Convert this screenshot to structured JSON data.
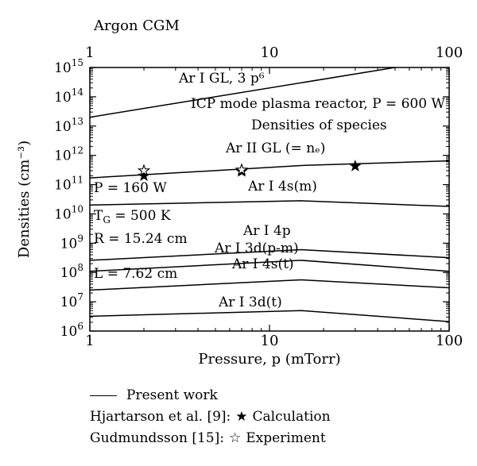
{
  "chart_data": {
    "type": "line",
    "title": "Argon CGM",
    "xlabel": "Pressure, p (mTorr)",
    "ylabel": "Densities (cm⁻³)",
    "x_scale": "log",
    "y_scale": "log",
    "xlim": [
      1,
      100
    ],
    "ylim": [
      1000000.0,
      1000000000000000.0
    ],
    "x_ticks": [
      {
        "value": 1,
        "label": "1"
      },
      {
        "value": 10,
        "label": "10"
      },
      {
        "value": 100,
        "label": "100"
      }
    ],
    "y_ticks": [
      {
        "exp": 6,
        "base": "10",
        "sup": "6"
      },
      {
        "exp": 7,
        "base": "10",
        "sup": "7"
      },
      {
        "exp": 8,
        "base": "10",
        "sup": "8"
      },
      {
        "exp": 9,
        "base": "10",
        "sup": "9"
      },
      {
        "exp": 10,
        "base": "10",
        "sup": "10"
      },
      {
        "exp": 11,
        "base": "10",
        "sup": "11"
      },
      {
        "exp": 12,
        "base": "10",
        "sup": "12"
      },
      {
        "exp": 13,
        "base": "10",
        "sup": "13"
      },
      {
        "exp": 14,
        "base": "10",
        "sup": "14"
      },
      {
        "exp": 15,
        "base": "10",
        "sup": "15"
      }
    ],
    "series": [
      {
        "label": "Ar I GL, 3 p⁶",
        "x": [
          1,
          50
        ],
        "y": [
          20000000000000.0,
          1000000000000000.0
        ]
      },
      {
        "label": "Ar II GL (= nₑ)",
        "x": [
          1,
          15,
          100
        ],
        "y": [
          170000000000.0,
          450000000000.0,
          650000000000.0
        ]
      },
      {
        "label": "Ar I 4s(m)",
        "x": [
          1,
          15,
          100
        ],
        "y": [
          20000000000.0,
          28000000000.0,
          18000000000.0
        ]
      },
      {
        "label": "Ar I 4p",
        "x": [
          1,
          15,
          100
        ],
        "y": [
          260000000.0,
          600000000.0,
          320000000.0
        ]
      },
      {
        "label": "Ar I 3d(p-m)",
        "x": [
          1,
          15,
          100
        ],
        "y": [
          110000000.0,
          260000000.0,
          110000000.0
        ]
      },
      {
        "label": "Ar I 4s(t)",
        "x": [
          1,
          15,
          100
        ],
        "y": [
          25000000.0,
          56000000.0,
          30000000.0
        ]
      },
      {
        "label": "Ar I 3d(t)",
        "x": [
          1,
          15,
          100
        ],
        "y": [
          3200000.0,
          5000000.0,
          2100000.0
        ]
      }
    ],
    "calculation_points": {
      "x": [
        2,
        7,
        30
      ],
      "y": [
        200000000000.0,
        280000000000.0,
        430000000000.0
      ]
    },
    "experiment_points": {
      "x": [
        2,
        7
      ],
      "y": [
        300000000000.0,
        320000000000.0
      ]
    },
    "annotations": {
      "reactor": "ICP mode plasma reactor, P = 600 W",
      "subtitle": "Densities of species",
      "power": "P = 160 W",
      "gas_temp": "T",
      "gas_temp_sub": "G",
      "gas_temp_val": " = 500 K",
      "radius": "R = 15.24 cm",
      "length": "L = 7.62 cm"
    }
  },
  "legend": {
    "present_work": "Present work",
    "hjartarson_source": "Hjartarson et al. [9]:",
    "hjartarson_symbol": "★",
    "hjartarson_label": "Calculation",
    "gudmundsson_source": "Gudmundsson [15]:",
    "gudmundsson_symbol": "☆",
    "gudmundsson_label": "Experiment"
  }
}
